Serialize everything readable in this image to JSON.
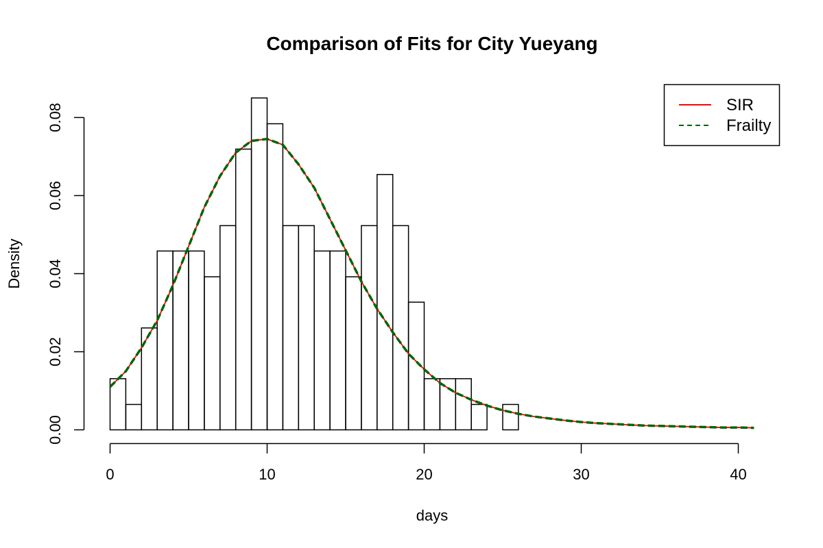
{
  "chart_data": {
    "type": "bar",
    "title": "Comparison of Fits for City Yueyang",
    "xlabel": "days",
    "ylabel": "Density",
    "xlim": [
      0,
      41
    ],
    "ylim": [
      0,
      0.085
    ],
    "x_ticks": [
      0,
      10,
      20,
      30,
      40
    ],
    "y_ticks": [
      0.0,
      0.02,
      0.04,
      0.06,
      0.08
    ],
    "y_tick_labels": [
      "0.00",
      "0.02",
      "0.04",
      "0.06",
      "0.08"
    ],
    "x_tick_labels": [
      "0",
      "10",
      "20",
      "30",
      "40"
    ],
    "grid": false,
    "legend_position": "top-right",
    "histogram": {
      "bin_width": 1,
      "bin_start": 0,
      "densities": [
        0.0131,
        0.0065,
        0.0261,
        0.0458,
        0.0458,
        0.0458,
        0.0392,
        0.0523,
        0.0719,
        0.085,
        0.0784,
        0.0523,
        0.0523,
        0.0458,
        0.0458,
        0.0392,
        0.0523,
        0.0654,
        0.0523,
        0.0327,
        0.0131,
        0.0131,
        0.0131,
        0.0065,
        0,
        0.0065
      ]
    },
    "series": [
      {
        "name": "SIR",
        "color": "#ff0000",
        "style": "solid",
        "x": [
          0,
          1,
          2,
          3,
          4,
          5,
          6,
          7,
          8,
          9,
          10,
          11,
          12,
          13,
          14,
          15,
          16,
          17,
          18,
          19,
          20,
          21,
          22,
          23,
          24,
          25,
          26,
          27,
          28,
          29,
          30,
          31,
          32,
          33,
          34,
          35,
          36,
          37,
          38,
          39,
          40,
          41
        ],
        "values": [
          0.011,
          0.015,
          0.021,
          0.028,
          0.037,
          0.047,
          0.057,
          0.065,
          0.071,
          0.074,
          0.0745,
          0.073,
          0.068,
          0.062,
          0.054,
          0.046,
          0.038,
          0.031,
          0.025,
          0.0195,
          0.0155,
          0.012,
          0.0095,
          0.0077,
          0.0062,
          0.005,
          0.0041,
          0.0034,
          0.0029,
          0.0024,
          0.002,
          0.0017,
          0.0015,
          0.0013,
          0.0011,
          0.001,
          0.0009,
          0.0008,
          0.0007,
          0.0006,
          0.0006,
          0.0005
        ]
      },
      {
        "name": "Frailty",
        "color": "#006400",
        "style": "dashed",
        "x": [
          0,
          1,
          2,
          3,
          4,
          5,
          6,
          7,
          8,
          9,
          10,
          11,
          12,
          13,
          14,
          15,
          16,
          17,
          18,
          19,
          20,
          21,
          22,
          23,
          24,
          25,
          26,
          27,
          28,
          29,
          30,
          31,
          32,
          33,
          34,
          35,
          36,
          37,
          38,
          39,
          40,
          41
        ],
        "values": [
          0.011,
          0.015,
          0.021,
          0.028,
          0.037,
          0.047,
          0.057,
          0.065,
          0.071,
          0.074,
          0.0745,
          0.073,
          0.068,
          0.062,
          0.054,
          0.046,
          0.038,
          0.031,
          0.025,
          0.0195,
          0.0155,
          0.012,
          0.0095,
          0.0077,
          0.0062,
          0.005,
          0.0041,
          0.0034,
          0.0029,
          0.0024,
          0.002,
          0.0017,
          0.0015,
          0.0013,
          0.0011,
          0.001,
          0.0009,
          0.0008,
          0.0007,
          0.0006,
          0.0006,
          0.0005
        ]
      }
    ]
  }
}
